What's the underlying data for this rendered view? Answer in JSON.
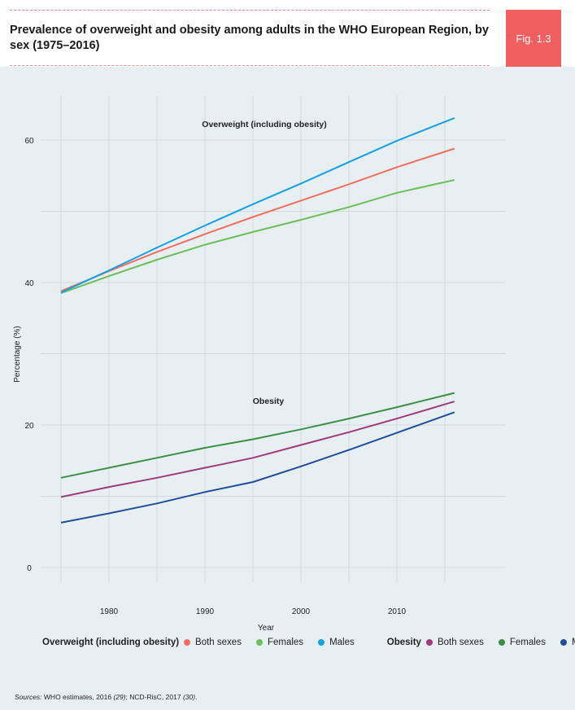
{
  "header": {
    "title": "Prevalence of overweight and obesity among adults in the WHO European Region, by sex (1975–2016)",
    "figure_label": "Fig. 1.3"
  },
  "colors": {
    "accent": "#f15f5f",
    "background": "#e8eff3",
    "grid": "#d3d8dc"
  },
  "chart_data": {
    "type": "line",
    "xlabel": "Year",
    "ylabel": "Percentage (%)",
    "xlim": [
      1975,
      2016
    ],
    "ylim": [
      0,
      63
    ],
    "x_ticks": [
      1980,
      1990,
      2000,
      2010
    ],
    "y_ticks": [
      0,
      20,
      40,
      60
    ],
    "grid": true,
    "legend_position": "bottom",
    "panel_labels": [
      "Overweight (including obesity)",
      "Obesity"
    ],
    "legend_groups": [
      {
        "title": "Overweight (including obesity)",
        "entries": [
          "Both sexes",
          "Females",
          "Males"
        ]
      },
      {
        "title": "Obesity",
        "entries": [
          "Both sexes",
          "Females",
          "Males"
        ]
      }
    ],
    "x": [
      1975,
      1980,
      1985,
      1990,
      1995,
      2000,
      2005,
      2010,
      2016
    ],
    "series": [
      {
        "group": "Overweight (including obesity)",
        "name": "Both sexes",
        "color": "#f26d5b",
        "values": [
          38.8,
          41.6,
          44.3,
          46.8,
          49.2,
          51.5,
          53.8,
          56.2,
          58.8
        ]
      },
      {
        "group": "Overweight (including obesity)",
        "name": "Females",
        "color": "#6cbf5b",
        "values": [
          38.5,
          40.9,
          43.2,
          45.3,
          47.1,
          48.8,
          50.6,
          52.6,
          54.4
        ]
      },
      {
        "group": "Overweight (including obesity)",
        "name": "Males",
        "color": "#13a1e3",
        "values": [
          38.6,
          41.7,
          44.9,
          48.0,
          51.0,
          53.9,
          56.9,
          59.9,
          63.1
        ]
      },
      {
        "group": "Obesity",
        "name": "Both sexes",
        "color": "#a03a7a",
        "values": [
          9.9,
          11.3,
          12.6,
          14.0,
          15.4,
          17.2,
          19.0,
          20.9,
          23.3
        ]
      },
      {
        "group": "Obesity",
        "name": "Females",
        "color": "#3b8f43",
        "values": [
          12.6,
          14.0,
          15.4,
          16.8,
          18.0,
          19.4,
          20.9,
          22.5,
          24.5
        ]
      },
      {
        "group": "Obesity",
        "name": "Males",
        "color": "#1f4e9c",
        "values": [
          6.3,
          7.6,
          9.0,
          10.6,
          12.0,
          14.2,
          16.5,
          18.9,
          21.8
        ]
      }
    ]
  },
  "source": {
    "prefix": "Sources:",
    "text": " WHO estimates, 2016 ",
    "ref1": "(29)",
    "mid": "; NCD-RisC, 2017 ",
    "ref2": "(30)",
    "end": "."
  }
}
